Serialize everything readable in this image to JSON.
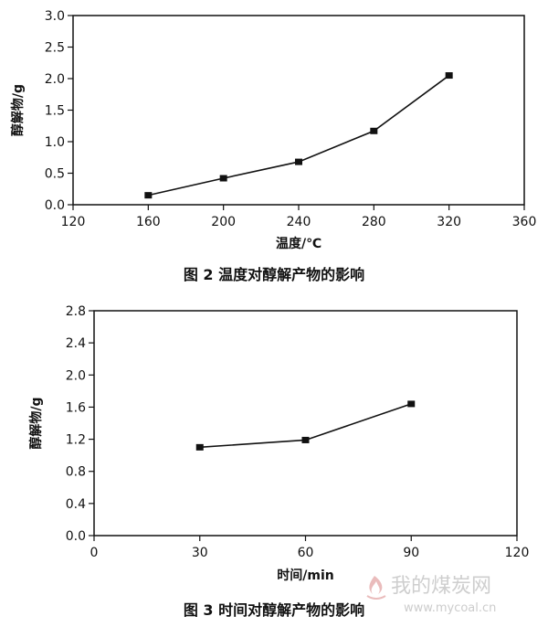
{
  "chart_data": [
    {
      "type": "line",
      "xlabel": "温度/℃",
      "ylabel": "醇解物/g",
      "caption": "图 2  温度对醇解产物的影响",
      "xlim": [
        120,
        360
      ],
      "ylim": [
        0.0,
        3.0
      ],
      "xticks": [
        "120",
        "160",
        "200",
        "240",
        "280",
        "320",
        "360"
      ],
      "yticks": [
        "0.0",
        "0.5",
        "1.0",
        "1.5",
        "2.0",
        "2.5",
        "3.0"
      ],
      "series": [
        {
          "x": [
            160,
            200,
            240,
            280,
            320
          ],
          "values": [
            0.15,
            0.42,
            0.68,
            1.17,
            2.05
          ]
        }
      ],
      "grid": false
    },
    {
      "type": "line",
      "xlabel": "时间/min",
      "ylabel": "醇解物/g",
      "caption": "图 3  时间对醇解产物的影响",
      "xlim": [
        0,
        120
      ],
      "ylim": [
        0.0,
        2.8
      ],
      "xticks": [
        "0",
        "30",
        "60",
        "90",
        "120"
      ],
      "yticks": [
        "0.0",
        "0.4",
        "0.8",
        "1.2",
        "1.6",
        "2.0",
        "2.4",
        "2.8"
      ],
      "series": [
        {
          "x": [
            30,
            60,
            90
          ],
          "values": [
            1.1,
            1.19,
            1.64
          ]
        }
      ],
      "grid": false
    }
  ],
  "watermark": {
    "text": "我的煤炭网",
    "url": "www.mycoal.cn",
    "logo_icon": "flame-logo-icon",
    "color": "#c9c9c9"
  }
}
